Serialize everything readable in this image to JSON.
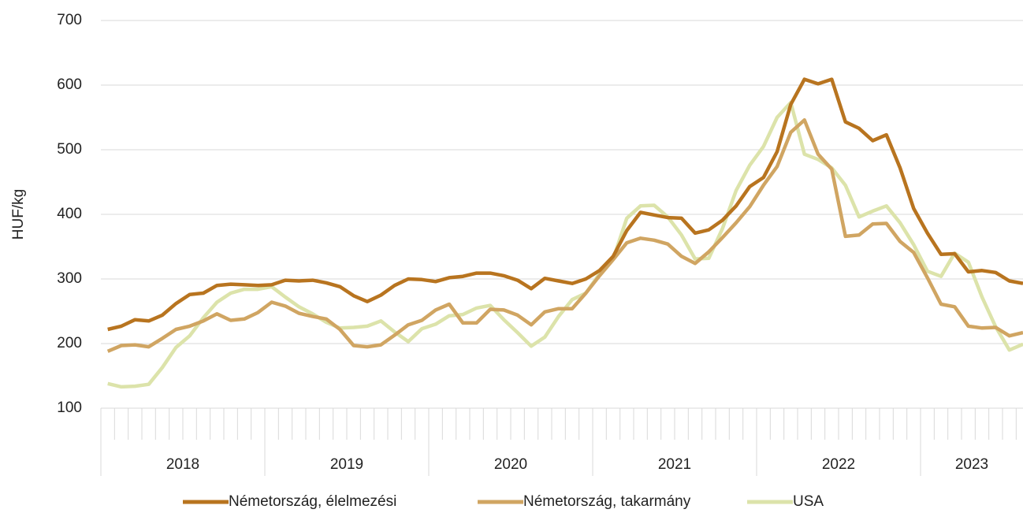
{
  "chart_data": {
    "type": "line",
    "y_label": "HUF/kg",
    "categories": [
      null,
      null,
      null,
      null,
      null,
      null,
      null,
      null,
      null,
      null,
      null,
      null,
      null,
      null,
      null,
      null,
      null,
      null,
      null,
      null,
      null,
      null,
      null,
      null,
      null,
      null,
      null,
      null,
      null,
      null,
      null,
      null,
      null,
      null,
      null,
      null,
      null,
      null,
      null,
      null,
      null,
      null,
      null,
      null,
      null,
      null,
      null,
      null,
      null,
      null,
      null,
      null,
      null,
      null,
      null,
      null,
      null,
      null,
      null,
      null,
      null,
      null,
      null,
      null,
      null,
      null,
      null,
      null
    ],
    "groups": [
      "2018",
      "2019",
      "2020",
      "2021",
      "2022",
      "2023"
    ],
    "group_sizes": [
      12,
      12,
      12,
      12,
      12,
      8
    ],
    "ylim": [
      100,
      700
    ],
    "yticks": [
      100,
      200,
      300,
      400,
      500,
      600,
      700
    ],
    "grid": true,
    "legend": "bottom",
    "series": [
      {
        "name": "Németország, élelmezési",
        "color": "#b8741f",
        "values": [
          222,
          227,
          237,
          235,
          244,
          262,
          276,
          278,
          290,
          292,
          291,
          290,
          291,
          298,
          297,
          298,
          294,
          288,
          274,
          265,
          275,
          290,
          300,
          299,
          296,
          302,
          304,
          309,
          309,
          305,
          298,
          285,
          301,
          297,
          293,
          300,
          313,
          335,
          375,
          403,
          399,
          395,
          394,
          371,
          376,
          391,
          413,
          443,
          457,
          497,
          570,
          609,
          602,
          609,
          543,
          533,
          514,
          523,
          472,
          409,
          371,
          338,
          339,
          311,
          313,
          310,
          297,
          293
        ]
      },
      {
        "name": "Németország, takarmány",
        "color": "#d0a562",
        "values": [
          188,
          197,
          198,
          195,
          208,
          222,
          227,
          235,
          246,
          236,
          238,
          248,
          264,
          258,
          247,
          242,
          238,
          222,
          197,
          195,
          198,
          213,
          229,
          236,
          252,
          261,
          232,
          232,
          253,
          252,
          244,
          229,
          249,
          254,
          254,
          278,
          305,
          330,
          356,
          363,
          360,
          354,
          335,
          324,
          342,
          364,
          387,
          412,
          445,
          474,
          527,
          546,
          493,
          470,
          366,
          368,
          385,
          386,
          358,
          341,
          302,
          261,
          257,
          227,
          224,
          225,
          212,
          217
        ]
      },
      {
        "name": "USA",
        "color": "#dce3aa",
        "values": [
          138,
          133,
          134,
          137,
          163,
          194,
          212,
          240,
          264,
          278,
          284,
          284,
          288,
          272,
          257,
          246,
          233,
          224,
          225,
          227,
          235,
          218,
          203,
          223,
          230,
          243,
          245,
          255,
          259,
          237,
          217,
          196,
          210,
          242,
          268,
          278,
          308,
          331,
          394,
          413,
          414,
          396,
          368,
          331,
          332,
          378,
          437,
          476,
          505,
          550,
          573,
          493,
          485,
          472,
          445,
          396,
          405,
          413,
          387,
          353,
          312,
          304,
          340,
          326,
          272,
          226,
          190,
          199
        ]
      }
    ]
  }
}
